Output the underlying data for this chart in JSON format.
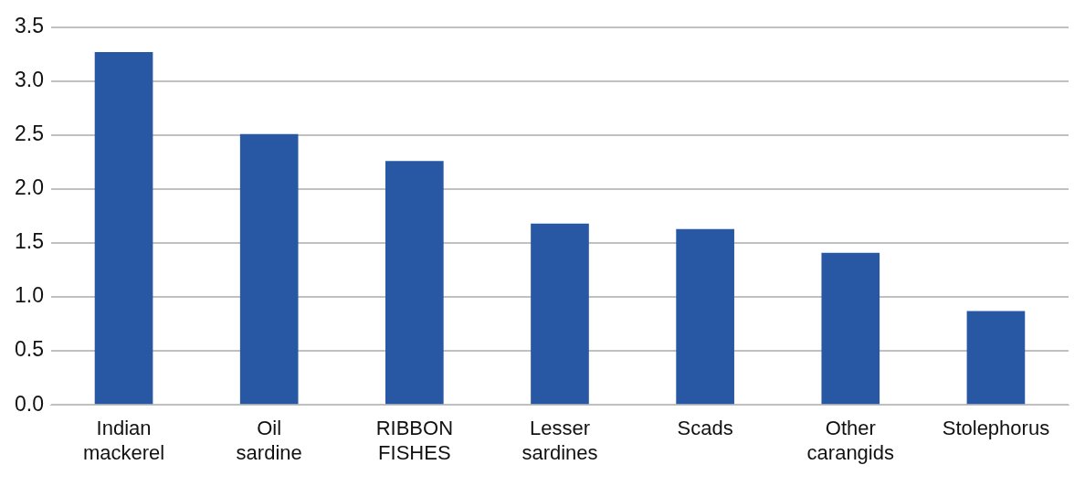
{
  "chart_data": {
    "type": "bar",
    "categories": [
      "Indian mackerel",
      "Oil sardine",
      "RIBBON FISHES",
      "Lesser sardines",
      "Scads",
      "Other carangids",
      "Stolephorus"
    ],
    "values": [
      3.27,
      2.51,
      2.26,
      1.68,
      1.63,
      1.41,
      0.87
    ],
    "color": "#2858a4",
    "ylim": [
      0,
      3.5
    ],
    "yticks": [
      {
        "value": 0,
        "label": "0.0"
      },
      {
        "value": 0.5,
        "label": "0.5"
      },
      {
        "value": 1,
        "label": "1.0"
      },
      {
        "value": 1.5,
        "label": "1.5"
      },
      {
        "value": 2,
        "label": "2.0"
      },
      {
        "value": 2.5,
        "label": "2.5"
      },
      {
        "value": 3,
        "label": "3.0"
      },
      {
        "value": 3.5,
        "label": "3.5"
      }
    ],
    "grid": "y"
  }
}
